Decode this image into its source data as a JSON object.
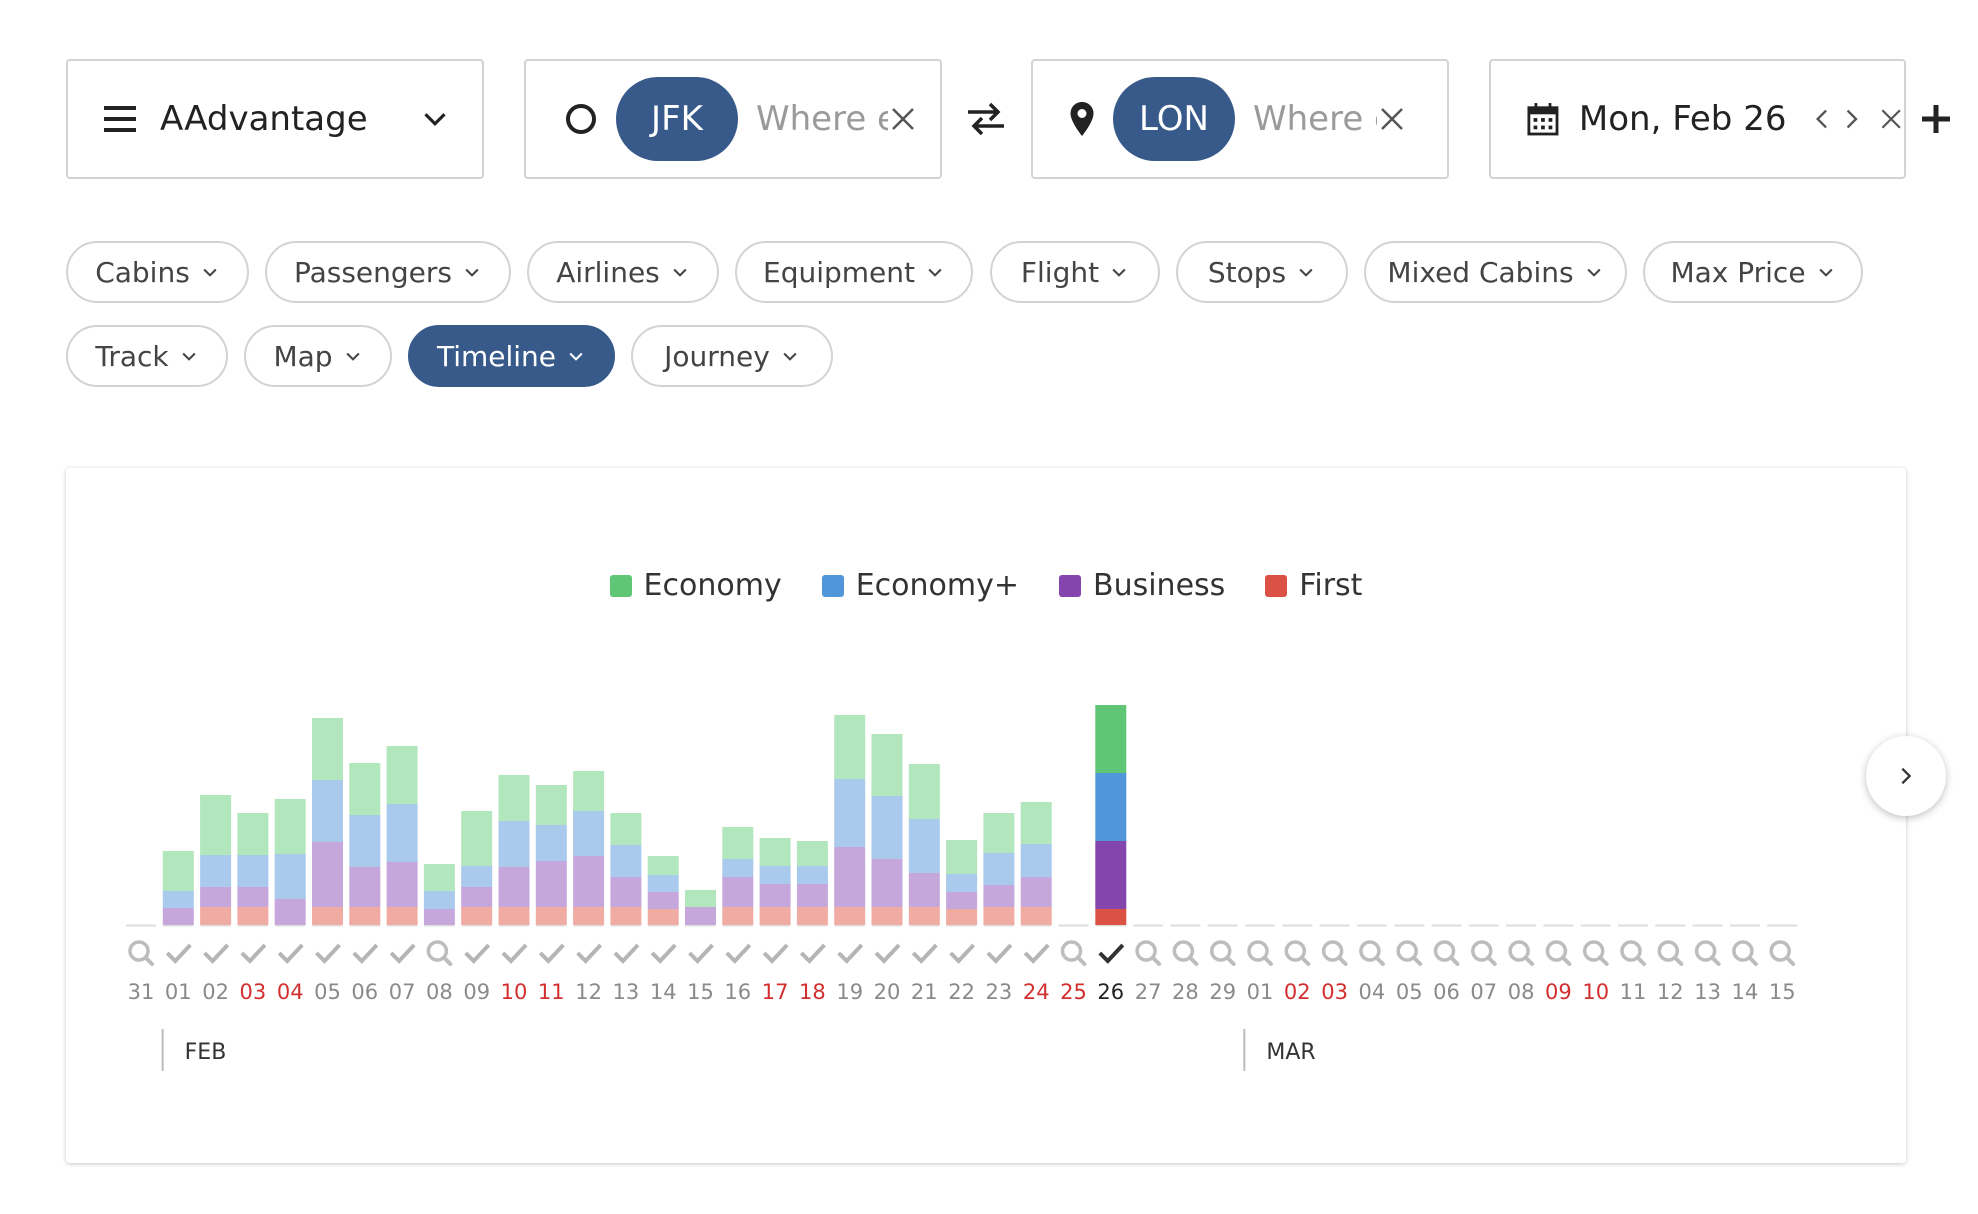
{
  "program": {
    "label": "AAdvantage",
    "icon": "menu-icon"
  },
  "origin": {
    "code": "JFK",
    "placeholder": "Where else?",
    "icon": "circle-icon"
  },
  "destination": {
    "code": "LON",
    "placeholder": "Where else?",
    "icon": "pin-icon"
  },
  "date": {
    "label": "Mon, Feb 26",
    "icon": "calendar-icon"
  },
  "filters": [
    {
      "label": "Cabins",
      "active": false
    },
    {
      "label": "Passengers",
      "active": false
    },
    {
      "label": "Airlines",
      "active": false
    },
    {
      "label": "Equipment",
      "active": false
    },
    {
      "label": "Flight",
      "active": false
    },
    {
      "label": "Stops",
      "active": false
    },
    {
      "label": "Mixed Cabins",
      "active": false
    },
    {
      "label": "Max Price",
      "active": false
    },
    {
      "label": "Track",
      "active": false
    },
    {
      "label": "Map",
      "active": false
    },
    {
      "label": "Timeline",
      "active": true
    },
    {
      "label": "Journey",
      "active": false
    }
  ],
  "colors": {
    "accent": "#385a8a",
    "weekend": "#d32f2f",
    "economy": "#5ec675",
    "economy_plus": "#5296da",
    "business": "#8445ad",
    "first": "#db5244"
  },
  "chart_data": {
    "type": "bar",
    "stacked": true,
    "legend": [
      "Economy",
      "Economy+",
      "Business",
      "First"
    ],
    "days": [
      {
        "label": "31",
        "status": "search",
        "weekend": false,
        "economy": 0,
        "economy_plus": 0,
        "business": 0,
        "first": 0
      },
      {
        "label": "01",
        "status": "done",
        "weekend": false,
        "economy": 4,
        "economy_plus": 1.7,
        "business": 1.7,
        "first": 0
      },
      {
        "label": "02",
        "status": "done",
        "weekend": false,
        "economy": 6,
        "economy_plus": 3.2,
        "business": 2,
        "first": 1.8
      },
      {
        "label": "03",
        "status": "done",
        "weekend": true,
        "economy": 4.2,
        "economy_plus": 3.2,
        "business": 2,
        "first": 1.8
      },
      {
        "label": "04",
        "status": "done",
        "weekend": true,
        "economy": 5.5,
        "economy_plus": 4.5,
        "business": 2.6,
        "first": 0
      },
      {
        "label": "05",
        "status": "done",
        "weekend": false,
        "economy": 6.2,
        "economy_plus": 6.2,
        "business": 6.5,
        "first": 1.8
      },
      {
        "label": "06",
        "status": "done",
        "weekend": false,
        "economy": 5.2,
        "economy_plus": 5.2,
        "business": 4,
        "first": 1.8
      },
      {
        "label": "07",
        "status": "done",
        "weekend": false,
        "economy": 5.8,
        "economy_plus": 5.8,
        "business": 4.5,
        "first": 1.8
      },
      {
        "label": "08",
        "status": "search",
        "weekend": false,
        "economy": 2.7,
        "economy_plus": 1.8,
        "business": 1.6,
        "first": 0
      },
      {
        "label": "09",
        "status": "done",
        "weekend": false,
        "economy": 5.5,
        "economy_plus": 2.1,
        "business": 2,
        "first": 1.8
      },
      {
        "label": "10",
        "status": "done",
        "weekend": true,
        "economy": 4.6,
        "economy_plus": 4.6,
        "business": 4,
        "first": 1.8
      },
      {
        "label": "11",
        "status": "done",
        "weekend": true,
        "economy": 4,
        "economy_plus": 3.6,
        "business": 4.6,
        "first": 1.8
      },
      {
        "label": "12",
        "status": "done",
        "weekend": false,
        "economy": 4,
        "economy_plus": 4.5,
        "business": 5.1,
        "first": 1.8
      },
      {
        "label": "13",
        "status": "done",
        "weekend": false,
        "economy": 3.2,
        "economy_plus": 3.2,
        "business": 3,
        "first": 1.8
      },
      {
        "label": "14",
        "status": "done",
        "weekend": false,
        "economy": 1.9,
        "economy_plus": 1.7,
        "business": 1.7,
        "first": 1.6
      },
      {
        "label": "15",
        "status": "done",
        "weekend": false,
        "economy": 1.7,
        "economy_plus": 0,
        "business": 1.8,
        "first": 0
      },
      {
        "label": "16",
        "status": "done",
        "weekend": false,
        "economy": 3.2,
        "economy_plus": 1.8,
        "business": 3,
        "first": 1.8
      },
      {
        "label": "17",
        "status": "done",
        "weekend": true,
        "economy": 2.8,
        "economy_plus": 1.8,
        "business": 2.3,
        "first": 1.8
      },
      {
        "label": "18",
        "status": "done",
        "weekend": true,
        "economy": 2.5,
        "economy_plus": 1.8,
        "business": 2.3,
        "first": 1.8
      },
      {
        "label": "19",
        "status": "done",
        "weekend": false,
        "economy": 6.4,
        "economy_plus": 6.8,
        "business": 6,
        "first": 1.8
      },
      {
        "label": "20",
        "status": "done",
        "weekend": false,
        "economy": 6.2,
        "economy_plus": 6.3,
        "business": 4.8,
        "first": 1.8
      },
      {
        "label": "21",
        "status": "done",
        "weekend": false,
        "economy": 5.5,
        "economy_plus": 5.4,
        "business": 3.4,
        "first": 1.8
      },
      {
        "label": "22",
        "status": "done",
        "weekend": false,
        "economy": 3.4,
        "economy_plus": 1.8,
        "business": 1.7,
        "first": 1.6
      },
      {
        "label": "23",
        "status": "done",
        "weekend": false,
        "economy": 4,
        "economy_plus": 3.2,
        "business": 2.2,
        "first": 1.8
      },
      {
        "label": "24",
        "status": "done",
        "weekend": true,
        "economy": 4.2,
        "economy_plus": 3.3,
        "business": 3,
        "first": 1.8
      },
      {
        "label": "25",
        "status": "search",
        "weekend": true,
        "economy": 0,
        "economy_plus": 0,
        "business": 0,
        "first": 0
      },
      {
        "label": "26",
        "status": "selected",
        "weekend": false,
        "economy": 6.8,
        "economy_plus": 6.8,
        "business": 6.8,
        "first": 1.6
      },
      {
        "label": "27",
        "status": "search",
        "weekend": false,
        "economy": 0,
        "economy_plus": 0,
        "business": 0,
        "first": 0
      },
      {
        "label": "28",
        "status": "search",
        "weekend": false,
        "economy": 0,
        "economy_plus": 0,
        "business": 0,
        "first": 0
      },
      {
        "label": "29",
        "status": "search",
        "weekend": false,
        "economy": 0,
        "economy_plus": 0,
        "business": 0,
        "first": 0
      },
      {
        "label": "01",
        "status": "search",
        "weekend": false,
        "economy": 0,
        "economy_plus": 0,
        "business": 0,
        "first": 0
      },
      {
        "label": "02",
        "status": "search",
        "weekend": true,
        "economy": 0,
        "economy_plus": 0,
        "business": 0,
        "first": 0
      },
      {
        "label": "03",
        "status": "search",
        "weekend": true,
        "economy": 0,
        "economy_plus": 0,
        "business": 0,
        "first": 0
      },
      {
        "label": "04",
        "status": "search",
        "weekend": false,
        "economy": 0,
        "economy_plus": 0,
        "business": 0,
        "first": 0
      },
      {
        "label": "05",
        "status": "search",
        "weekend": false,
        "economy": 0,
        "economy_plus": 0,
        "business": 0,
        "first": 0
      },
      {
        "label": "06",
        "status": "search",
        "weekend": false,
        "economy": 0,
        "economy_plus": 0,
        "business": 0,
        "first": 0
      },
      {
        "label": "07",
        "status": "search",
        "weekend": false,
        "economy": 0,
        "economy_plus": 0,
        "business": 0,
        "first": 0
      },
      {
        "label": "08",
        "status": "search",
        "weekend": false,
        "economy": 0,
        "economy_plus": 0,
        "business": 0,
        "first": 0
      },
      {
        "label": "09",
        "status": "search",
        "weekend": true,
        "economy": 0,
        "economy_plus": 0,
        "business": 0,
        "first": 0
      },
      {
        "label": "10",
        "status": "search",
        "weekend": true,
        "economy": 0,
        "economy_plus": 0,
        "business": 0,
        "first": 0
      },
      {
        "label": "11",
        "status": "search",
        "weekend": false,
        "economy": 0,
        "economy_plus": 0,
        "business": 0,
        "first": 0
      },
      {
        "label": "12",
        "status": "search",
        "weekend": false,
        "economy": 0,
        "economy_plus": 0,
        "business": 0,
        "first": 0
      },
      {
        "label": "13",
        "status": "search",
        "weekend": false,
        "economy": 0,
        "economy_plus": 0,
        "business": 0,
        "first": 0
      },
      {
        "label": "14",
        "status": "search",
        "weekend": false,
        "economy": 0,
        "economy_plus": 0,
        "business": 0,
        "first": 0
      },
      {
        "label": "15",
        "status": "search",
        "weekend": false,
        "economy": 0,
        "economy_plus": 0,
        "business": 0,
        "first": 0
      }
    ],
    "months": [
      {
        "label": "FEB",
        "start_index": 1
      },
      {
        "label": "MAR",
        "start_index": 30
      }
    ],
    "selected_index": 26
  }
}
